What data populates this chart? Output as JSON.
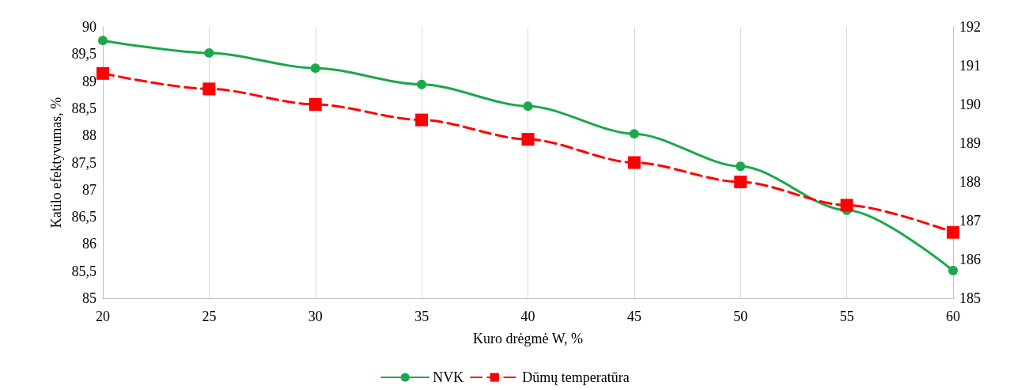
{
  "chart_data": {
    "type": "line",
    "xlabel": "Kuro drėgmė W, %",
    "ylabel": "Katilo efektyvumas, %",
    "x": [
      20,
      25,
      30,
      35,
      40,
      45,
      50,
      55,
      60
    ],
    "series": [
      {
        "name": "NVK",
        "color": "#1aa84a",
        "marker": "circle",
        "line_style": "solid",
        "values": [
          89.75,
          89.52,
          89.24,
          88.94,
          88.54,
          88.03,
          87.43,
          86.62,
          85.51
        ]
      },
      {
        "name": "Dūmų temperatūra",
        "color": "#ff0000",
        "marker": "square",
        "line_style": "dashed",
        "axis": "y2",
        "values": [
          190.8,
          190.4,
          190.0,
          189.6,
          189.1,
          188.5,
          188.0,
          187.4,
          186.7
        ]
      }
    ],
    "xlim": [
      20,
      60
    ],
    "xticks": [
      20,
      25,
      30,
      35,
      40,
      45,
      50,
      55,
      60
    ],
    "ylim": [
      85,
      90
    ],
    "yticks": [
      85,
      {
        "value": 85.5,
        "label": "85,5"
      },
      86,
      {
        "value": 86.5,
        "label": "86,5"
      },
      87,
      {
        "value": 87.5,
        "label": "87,5"
      },
      88,
      {
        "value": 88.5,
        "label": "88,5"
      },
      89,
      {
        "value": 89.5,
        "label": "89,5"
      },
      90
    ],
    "y2lim": [
      185,
      192
    ],
    "y2ticks": [
      185,
      186,
      187,
      188,
      189,
      190,
      191,
      192
    ],
    "grid": "x",
    "legend": "bottom"
  }
}
